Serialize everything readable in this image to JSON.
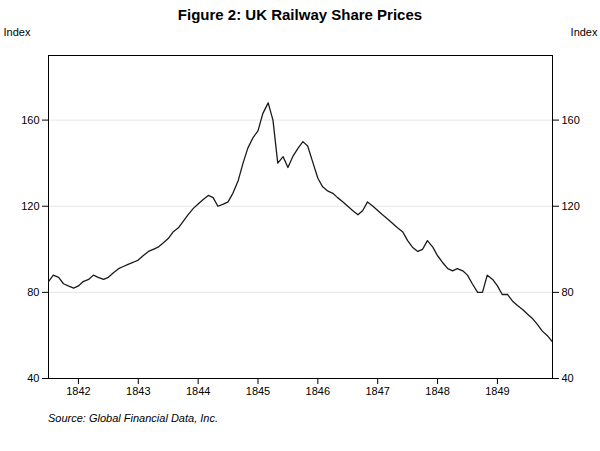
{
  "chart_data": {
    "type": "line",
    "title": "Figure 2: UK Railway Share Prices",
    "caption": "Source: Global Financial Data, Inc.",
    "ylabel": "Index",
    "y2label": "Index",
    "color": "#1a1a1a",
    "grid": true,
    "xlim": [
      1841.5,
      1849.92
    ],
    "xticks": [
      1842,
      1843,
      1844,
      1845,
      1846,
      1847,
      1848,
      1849
    ],
    "ylim": [
      40,
      190
    ],
    "yticks": [
      40,
      80,
      120,
      160
    ],
    "y2lim": [
      40,
      190
    ],
    "y2ticks": [
      40,
      80,
      120,
      160
    ],
    "x": [
      1841.5,
      1841.58,
      1841.67,
      1841.75,
      1841.83,
      1841.92,
      1842,
      1842.08,
      1842.17,
      1842.25,
      1842.33,
      1842.42,
      1842.5,
      1842.58,
      1842.67,
      1842.75,
      1842.83,
      1842.92,
      1843,
      1843.08,
      1843.17,
      1843.25,
      1843.33,
      1843.42,
      1843.5,
      1843.58,
      1843.67,
      1843.75,
      1843.83,
      1843.92,
      1844,
      1844.08,
      1844.17,
      1844.25,
      1844.33,
      1844.42,
      1844.5,
      1844.58,
      1844.67,
      1844.75,
      1844.83,
      1844.92,
      1845,
      1845.08,
      1845.17,
      1845.25,
      1845.33,
      1845.42,
      1845.5,
      1845.58,
      1845.67,
      1845.75,
      1845.83,
      1845.92,
      1846,
      1846.08,
      1846.17,
      1846.25,
      1846.33,
      1846.42,
      1846.5,
      1846.58,
      1846.67,
      1846.75,
      1846.83,
      1846.92,
      1847,
      1847.08,
      1847.17,
      1847.25,
      1847.33,
      1847.42,
      1847.5,
      1847.58,
      1847.67,
      1847.75,
      1847.83,
      1847.92,
      1848,
      1848.08,
      1848.17,
      1848.25,
      1848.33,
      1848.42,
      1848.5,
      1848.58,
      1848.67,
      1848.75,
      1848.83,
      1848.92,
      1849,
      1849.08,
      1849.17,
      1849.25,
      1849.33,
      1849.42,
      1849.5,
      1849.58,
      1849.67,
      1849.75,
      1849.83,
      1849.92
    ],
    "values": [
      85,
      88,
      87,
      84,
      83,
      82,
      83,
      85,
      86,
      88,
      87,
      86,
      87,
      89,
      91,
      92,
      93,
      94,
      95,
      97,
      99,
      100,
      101,
      103,
      105,
      108,
      110,
      113,
      116,
      119,
      121,
      123,
      125,
      124,
      120,
      121,
      122,
      126,
      132,
      140,
      147,
      152,
      155,
      163,
      168,
      160,
      140,
      143,
      138,
      143,
      147,
      150,
      148,
      140,
      133,
      129,
      127,
      126,
      124,
      122,
      120,
      118,
      116,
      118,
      122,
      120,
      118,
      116,
      114,
      112,
      110,
      108,
      104,
      101,
      99,
      100,
      104,
      101,
      97,
      94,
      91,
      90,
      91,
      90,
      88,
      84,
      80,
      80,
      88,
      86,
      83,
      79,
      79,
      76,
      74,
      72,
      70,
      68,
      65,
      62,
      60,
      57
    ]
  }
}
